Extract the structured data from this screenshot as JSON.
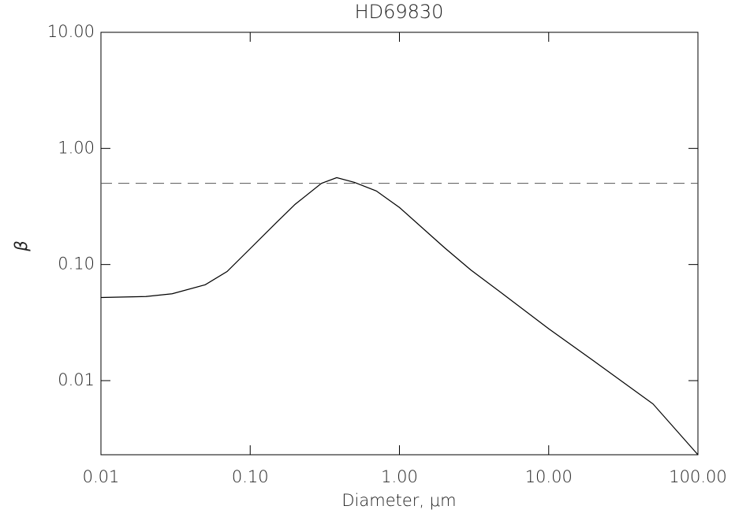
{
  "chart_data": {
    "type": "line",
    "title": "HD69830",
    "x_label": "Diameter, μm",
    "y_label": "β",
    "x": [
      0.01,
      0.02,
      0.03,
      0.05,
      0.07,
      0.1,
      0.15,
      0.2,
      0.3,
      0.38,
      0.5,
      0.7,
      1,
      2,
      3,
      5,
      10,
      20,
      50,
      100
    ],
    "series": [
      {
        "name": "β",
        "color": "#000000",
        "values": [
          0.052,
          0.053,
          0.056,
          0.067,
          0.087,
          0.137,
          0.23,
          0.33,
          0.5,
          0.56,
          0.51,
          0.43,
          0.31,
          0.14,
          0.09,
          0.055,
          0.028,
          0.0148,
          0.0063,
          0.0023
        ]
      }
    ],
    "xlim": [
      0.01,
      100
    ],
    "ylim": [
      0.0023,
      10
    ],
    "xscale": "log",
    "yscale": "log",
    "xticks": [
      0.01,
      {
        "value": 0.1,
        "label": "0.10"
      },
      {
        "value": 1,
        "label": "1.00"
      },
      {
        "value": 10,
        "label": "10.00"
      },
      {
        "value": 100,
        "label": "100.00"
      }
    ],
    "yticks": [
      0.01,
      {
        "value": 0.1,
        "label": "0.10"
      },
      {
        "value": 1,
        "label": "1.00"
      },
      {
        "value": 10,
        "label": "10.00"
      }
    ],
    "hlines": [
      {
        "value": 0.5,
        "color": "#555555",
        "style": "dashed"
      }
    ]
  }
}
